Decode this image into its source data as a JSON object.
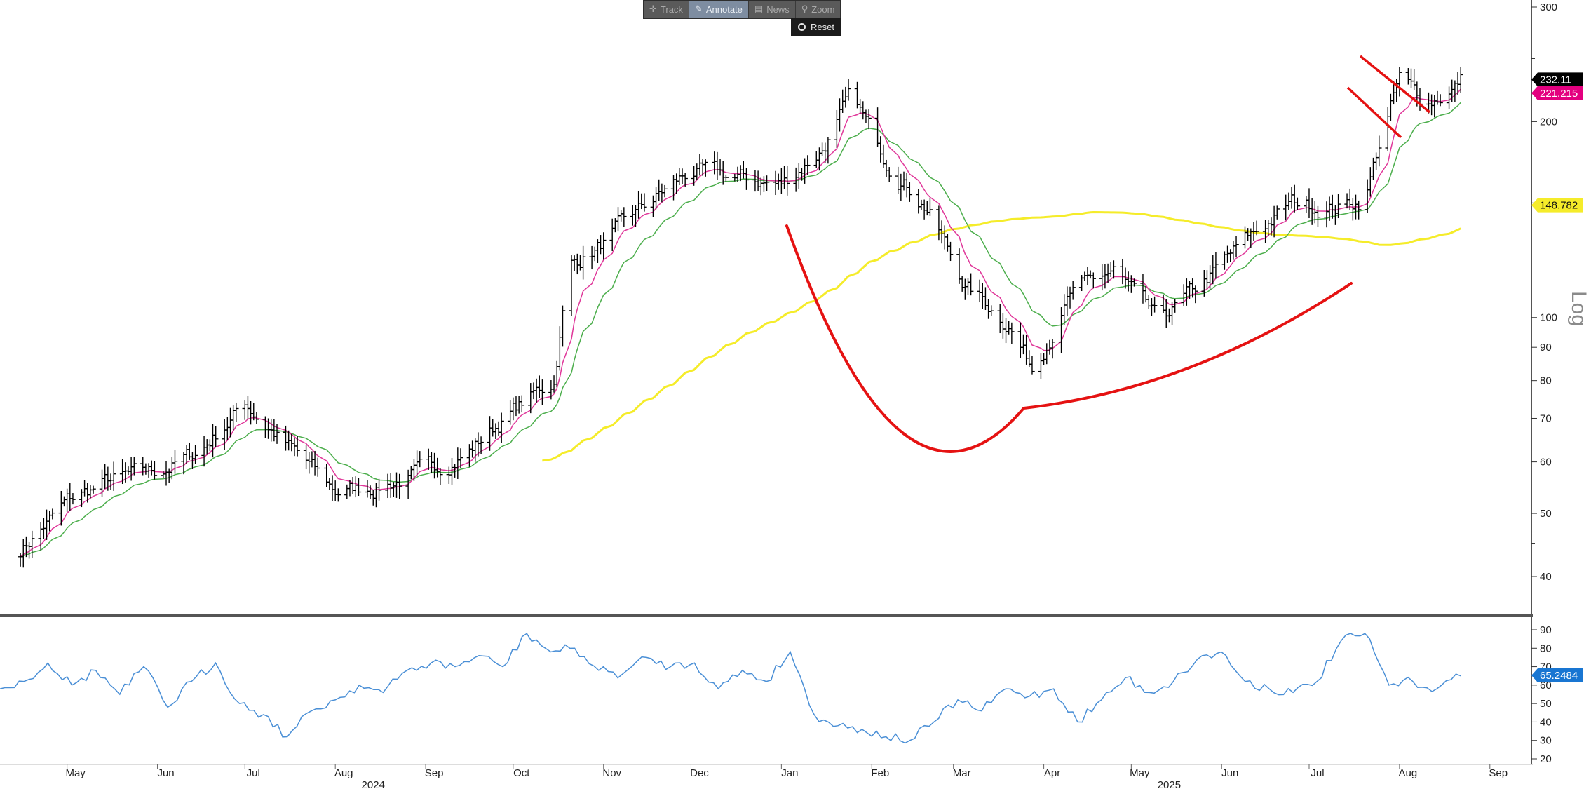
{
  "toolbar": {
    "track_label": "Track",
    "annotate_label": "Annotate",
    "news_label": "News",
    "zoom_label": "Zoom",
    "reset_label": "Reset",
    "icons": {
      "track": "crosshair-icon",
      "annotate": "pencil-icon",
      "news": "newspaper-icon",
      "zoom": "magnifier-icon",
      "reset": "reset-dot-icon"
    }
  },
  "chart_data": [
    {
      "type": "ohlc",
      "panel": "price",
      "scale": "log",
      "scale_label": "Log",
      "ylim": [
        35,
        310
      ],
      "y_ticks": [
        300,
        200,
        100,
        90,
        80,
        70,
        60,
        50,
        40
      ],
      "x_ticks": [
        "May",
        "Jun",
        "Jul",
        "Aug",
        "Sep",
        "Oct",
        "Nov",
        "Dec",
        "Jan",
        "Feb",
        "Mar",
        "Apr",
        "May",
        "Jun",
        "Jul",
        "Aug",
        "Sep"
      ],
      "year_labels": [
        "2024",
        "2025"
      ],
      "last_price_labels": {
        "price": "232.11",
        "fast_ma": "221.215",
        "slow_ma": "148.782"
      },
      "colors": {
        "bars": "#000000",
        "fast_ma": "#e0389a",
        "slow_ma": "#4cae4c",
        "long_ma": "#f5ec2a",
        "annotation": "#e51212",
        "price_tag_bg": "#000000",
        "fast_tag_bg": "#e3007f",
        "slow_tag_bg": "#f5ec2a"
      },
      "approx_close_path": [
        {
          "date": "2024-04-15",
          "close": 44
        },
        {
          "date": "2024-05-01",
          "close": 52
        },
        {
          "date": "2024-05-15",
          "close": 56
        },
        {
          "date": "2024-06-01",
          "close": 58
        },
        {
          "date": "2024-06-15",
          "close": 62
        },
        {
          "date": "2024-07-01",
          "close": 74
        },
        {
          "date": "2024-07-15",
          "close": 64
        },
        {
          "date": "2024-08-01",
          "close": 54
        },
        {
          "date": "2024-08-15",
          "close": 55
        },
        {
          "date": "2024-09-01",
          "close": 58
        },
        {
          "date": "2024-09-15",
          "close": 62
        },
        {
          "date": "2024-10-01",
          "close": 72
        },
        {
          "date": "2024-10-15",
          "close": 80
        },
        {
          "date": "2024-10-20",
          "close": 120
        },
        {
          "date": "2024-11-01",
          "close": 130
        },
        {
          "date": "2024-11-15",
          "close": 148
        },
        {
          "date": "2024-12-01",
          "close": 168
        },
        {
          "date": "2024-12-15",
          "close": 164
        },
        {
          "date": "2025-01-01",
          "close": 160
        },
        {
          "date": "2025-01-15",
          "close": 182
        },
        {
          "date": "2025-01-25",
          "close": 218
        },
        {
          "date": "2025-02-05",
          "close": 178
        },
        {
          "date": "2025-02-20",
          "close": 148
        },
        {
          "date": "2025-03-05",
          "close": 112
        },
        {
          "date": "2025-03-20",
          "close": 98
        },
        {
          "date": "2025-03-28",
          "close": 84
        },
        {
          "date": "2025-04-10",
          "close": 108
        },
        {
          "date": "2025-04-25",
          "close": 118
        },
        {
          "date": "2025-05-10",
          "close": 98
        },
        {
          "date": "2025-05-25",
          "close": 112
        },
        {
          "date": "2025-06-10",
          "close": 132
        },
        {
          "date": "2025-06-25",
          "close": 150
        },
        {
          "date": "2025-07-10",
          "close": 148
        },
        {
          "date": "2025-07-20",
          "close": 152
        },
        {
          "date": "2025-07-25",
          "close": 185
        },
        {
          "date": "2025-08-01",
          "close": 232
        },
        {
          "date": "2025-08-10",
          "close": 214
        },
        {
          "date": "2025-08-20",
          "close": 226
        },
        {
          "date": "2025-08-22",
          "close": 232
        }
      ]
    },
    {
      "type": "line",
      "panel": "oscillator",
      "ylim": [
        15,
        95
      ],
      "y_ticks": [
        90,
        80,
        70,
        60,
        50,
        40,
        30,
        20
      ],
      "last_value_label": "65.2484",
      "colors": {
        "line": "#4a8fd6",
        "tag_bg": "#1976d2"
      },
      "series": [
        {
          "values": [
            58,
            62,
            72,
            60,
            68,
            55,
            70,
            48,
            62,
            72,
            50,
            44,
            32,
            46,
            52,
            60,
            56,
            68,
            72,
            70,
            76,
            70,
            88,
            78,
            80,
            68,
            66,
            75,
            70,
            72,
            58,
            68,
            62,
            78,
            44,
            38,
            36,
            32,
            30,
            40,
            52,
            46,
            58,
            54,
            58,
            40,
            52,
            64,
            56,
            62,
            74,
            78,
            62,
            58,
            56,
            62,
            84,
            88,
            60,
            62,
            58,
            65
          ]
        }
      ]
    }
  ]
}
